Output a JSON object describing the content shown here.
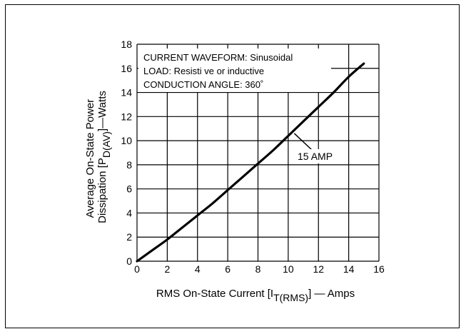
{
  "chart_data": {
    "type": "line",
    "xlabel": {
      "main": "RMS On-State Current [I",
      "sub": "T(RMS)",
      "tail": "] — Amps"
    },
    "ylabel": {
      "line1": "Average On-State Power",
      "line2_main": "Dissipation [P",
      "line2_sub": "D(AV)",
      "line2_tail": "]—Watts"
    },
    "xlim": [
      0,
      16
    ],
    "ylim": [
      0,
      18
    ],
    "x_ticks": [
      0,
      2,
      4,
      6,
      8,
      10,
      12,
      14,
      16
    ],
    "y_ticks": [
      0,
      2,
      4,
      6,
      8,
      10,
      12,
      14,
      16,
      18
    ],
    "grid": true,
    "annotations": [
      "CURRENT WAVEFORM: Sinusoidal",
      "LOAD: Resisti ve or inductive",
      "CONDUCTION ANGLE: 360˚"
    ],
    "series": [
      {
        "name": "15 AMP",
        "x": [
          0,
          1,
          2,
          3,
          4,
          5,
          6,
          7,
          8,
          9,
          10,
          11,
          12,
          13,
          14,
          15
        ],
        "y": [
          0,
          0.9,
          1.8,
          2.8,
          3.8,
          4.8,
          5.9,
          7.0,
          8.1,
          9.2,
          10.4,
          11.6,
          12.8,
          14.0,
          15.3,
          16.4
        ]
      }
    ],
    "series_label_point": [
      10.4,
      10.6
    ],
    "colors": {
      "line": "#000000",
      "grid": "#000000",
      "background": "#ffffff"
    }
  }
}
